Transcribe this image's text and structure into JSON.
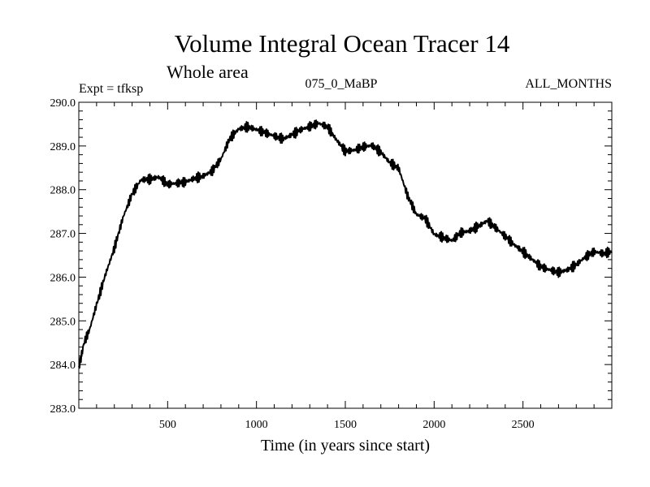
{
  "chart_data": {
    "type": "line",
    "title": "Volume Integral Ocean Tracer 14",
    "subtitle": "Whole area",
    "annotations": {
      "left": "Expt = tfksp",
      "center": "075_0_MaBP",
      "right": "ALL_MONTHS"
    },
    "xlabel": "Time (in years since start)",
    "ylabel": "",
    "xlim": [
      0,
      3000
    ],
    "ylim": [
      283.0,
      290.0
    ],
    "x_ticks": [
      500,
      1000,
      1500,
      2000,
      2500
    ],
    "x_tick_labels": [
      "500",
      "1000",
      "1500",
      "2000",
      "2500"
    ],
    "y_ticks": [
      283.0,
      284.0,
      285.0,
      286.0,
      287.0,
      288.0,
      289.0,
      290.0
    ],
    "y_tick_labels": [
      "283.0",
      "284.0",
      "285.0",
      "286.0",
      "287.0",
      "288.0",
      "289.0",
      "290.0"
    ],
    "grid": false,
    "series": [
      {
        "name": "Volume Integral Ocean Tracer 14",
        "color": "#000000",
        "x": [
          0,
          30,
          60,
          100,
          150,
          200,
          250,
          300,
          350,
          400,
          450,
          500,
          550,
          600,
          650,
          700,
          750,
          800,
          850,
          900,
          950,
          1000,
          1050,
          1100,
          1150,
          1200,
          1250,
          1300,
          1350,
          1400,
          1450,
          1500,
          1550,
          1600,
          1650,
          1700,
          1750,
          1800,
          1850,
          1900,
          1950,
          2000,
          2050,
          2100,
          2150,
          2200,
          2250,
          2300,
          2350,
          2400,
          2450,
          2500,
          2550,
          2600,
          2650,
          2700,
          2750,
          2800,
          2850,
          2900,
          2950,
          3000
        ],
        "values": [
          283.9,
          284.5,
          284.8,
          285.4,
          286.1,
          286.7,
          287.4,
          287.9,
          288.2,
          288.2,
          288.25,
          288.1,
          288.15,
          288.2,
          288.3,
          288.35,
          288.45,
          288.7,
          289.15,
          289.35,
          289.4,
          289.35,
          289.3,
          289.25,
          289.2,
          289.3,
          289.4,
          289.45,
          289.5,
          289.4,
          289.1,
          288.85,
          288.9,
          289.0,
          289.05,
          288.9,
          288.65,
          288.5,
          287.85,
          287.4,
          287.3,
          286.95,
          286.9,
          286.85,
          287.05,
          287.1,
          287.2,
          287.3,
          287.1,
          286.9,
          286.7,
          286.55,
          286.4,
          286.25,
          286.2,
          286.15,
          286.2,
          286.3,
          286.45,
          286.55,
          286.5,
          286.55
        ]
      }
    ]
  }
}
